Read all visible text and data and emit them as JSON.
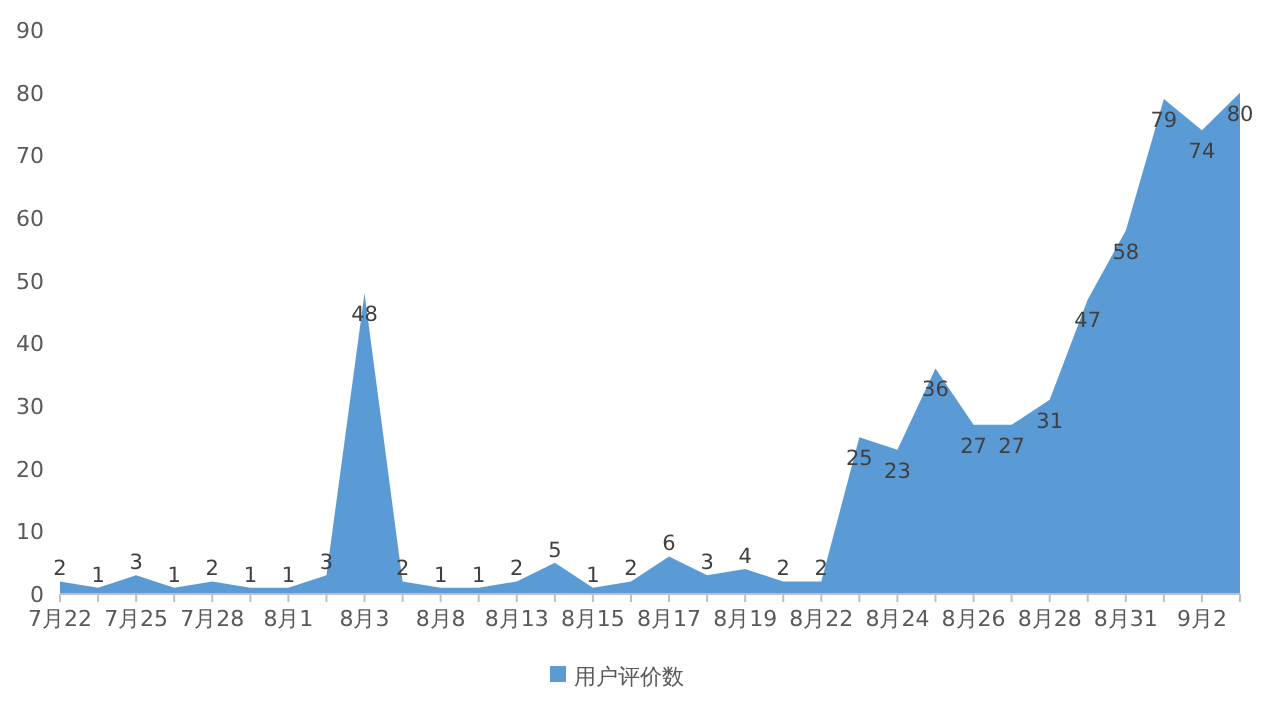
{
  "chart_data": {
    "type": "area",
    "categories": [
      "7月22",
      null,
      "7月25",
      null,
      "7月28",
      null,
      "8月1",
      null,
      "8月3",
      null,
      "8月8",
      null,
      "8月13",
      null,
      "8月15",
      null,
      "8月17",
      null,
      "8月19",
      null,
      "8月22",
      null,
      "8月24",
      null,
      "8月26",
      null,
      "8月28",
      null,
      "8月31",
      null,
      "9月2",
      null
    ],
    "series": [
      {
        "name": "用户评价数",
        "color": "#5b9bd5",
        "values": [
          2,
          1,
          3,
          1,
          2,
          1,
          1,
          3,
          48,
          2,
          1,
          1,
          2,
          5,
          1,
          2,
          6,
          3,
          4,
          2,
          2,
          25,
          23,
          36,
          27,
          27,
          31,
          47,
          58,
          79,
          74,
          80
        ]
      }
    ],
    "ylim": [
      0,
      90
    ],
    "yticks": [
      0,
      10,
      20,
      30,
      40,
      50,
      60,
      70,
      80,
      90
    ],
    "data_labels": true,
    "legend": "bottom",
    "grid": false
  }
}
